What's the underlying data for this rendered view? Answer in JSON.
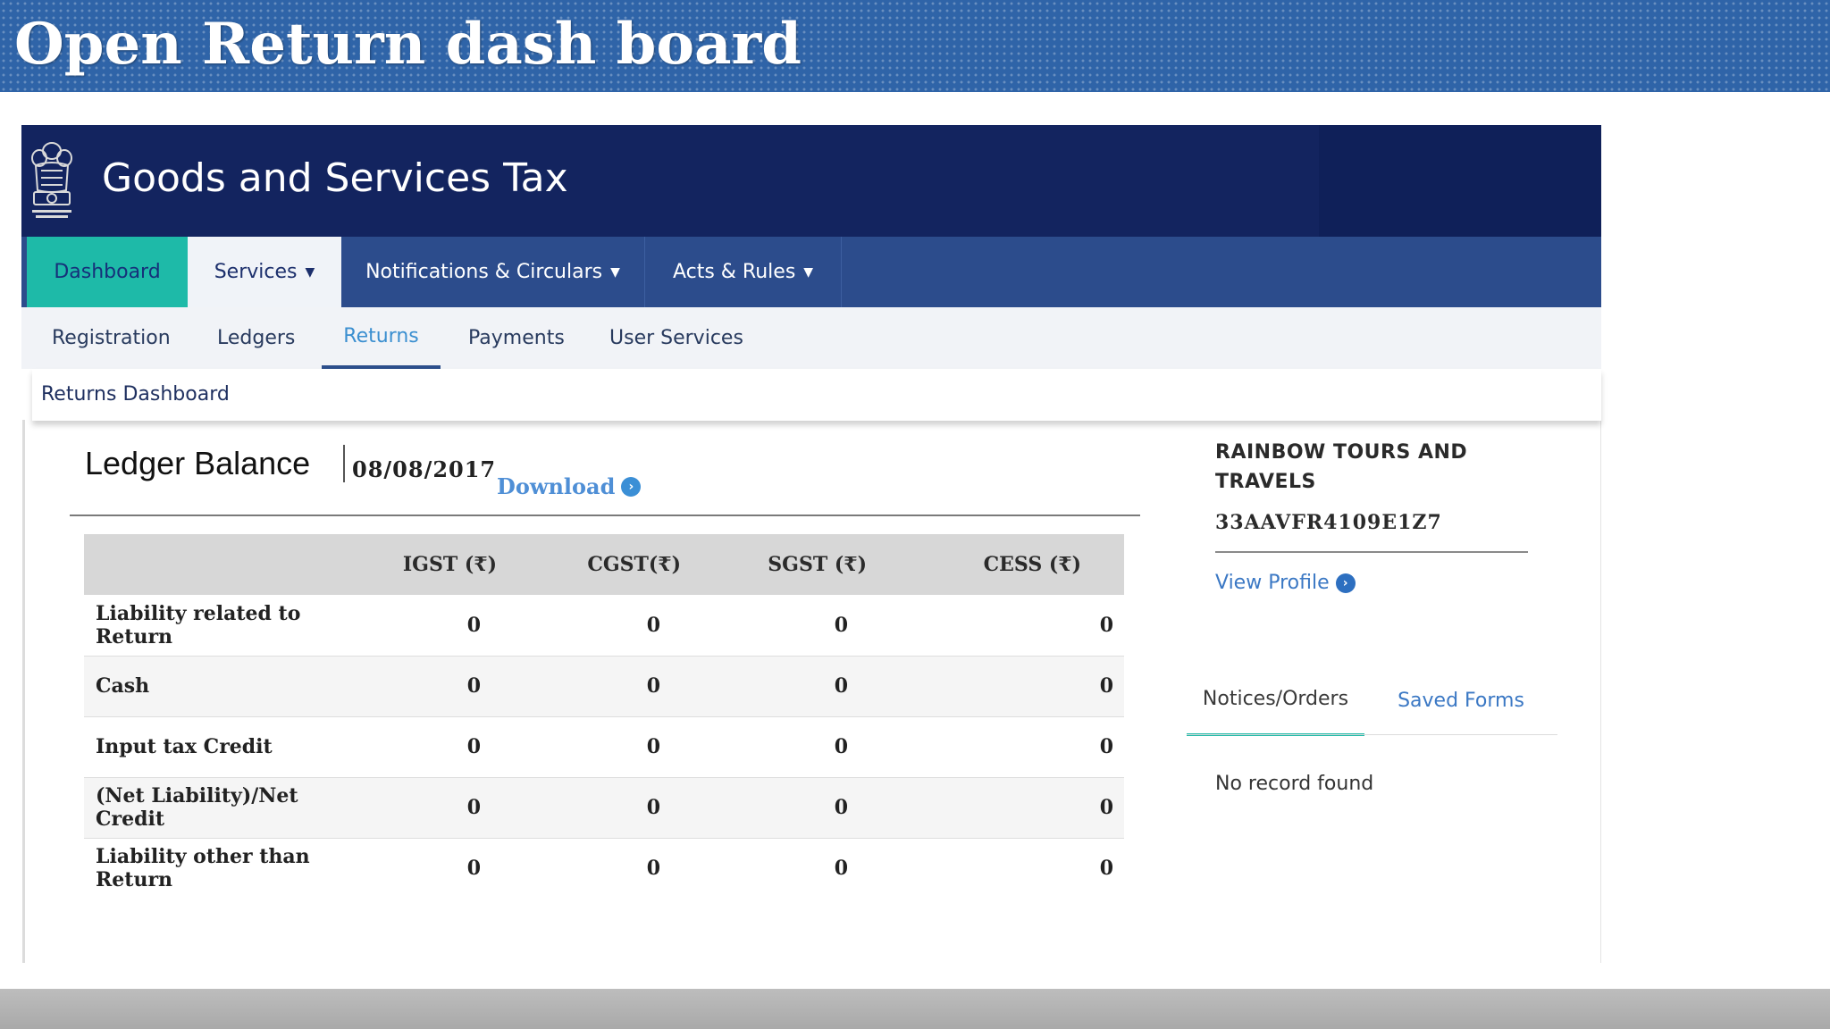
{
  "slide": {
    "title": "Open Return dash board"
  },
  "header": {
    "title": "Goods and Services Tax",
    "logo": "national-emblem"
  },
  "main_nav": {
    "dashboard": "Dashboard",
    "services": "Services",
    "notifications": "Notifications & Circulars",
    "acts": "Acts & Rules",
    "caret": "▼"
  },
  "sub_nav": {
    "registration": "Registration",
    "ledgers": "Ledgers",
    "returns": "Returns",
    "payments": "Payments",
    "user_services": "User Services"
  },
  "breadcrumb": "Returns Dashboard",
  "ledger": {
    "title": "Ledger Balance",
    "date": "08/08/2017",
    "download": "Download",
    "columns": {
      "igst": "IGST (₹)",
      "cgst": "CGST(₹)",
      "sgst": "SGST (₹)",
      "cess": "CESS (₹)"
    },
    "rows": [
      {
        "label": "Liability related to Return",
        "igst": "0",
        "cgst": "0",
        "sgst": "0",
        "cess": "0"
      },
      {
        "label": "Cash",
        "igst": "0",
        "cgst": "0",
        "sgst": "0",
        "cess": "0"
      },
      {
        "label": "Input tax Credit",
        "igst": "0",
        "cgst": "0",
        "sgst": "0",
        "cess": "0"
      },
      {
        "label": "(Net Liability)/Net Credit",
        "igst": "0",
        "cgst": "0",
        "sgst": "0",
        "cess": "0"
      },
      {
        "label": "Liability other than Return",
        "igst": "0",
        "cgst": "0",
        "sgst": "0",
        "cess": "0"
      }
    ]
  },
  "profile": {
    "company_name": "RAINBOW TOURS AND TRAVELS",
    "gstin": "33AAVFR4109E1Z7",
    "view_profile": "View Profile"
  },
  "side_tabs": {
    "notices": "Notices/Orders",
    "saved_forms": "Saved Forms",
    "empty_message": "No record found"
  },
  "colors": {
    "header_bg": "#13245f",
    "nav_bg": "#2c4c8c",
    "active_tab": "#1ebaa8",
    "link": "#3b78c4"
  },
  "icons": {
    "arrow": "›"
  }
}
